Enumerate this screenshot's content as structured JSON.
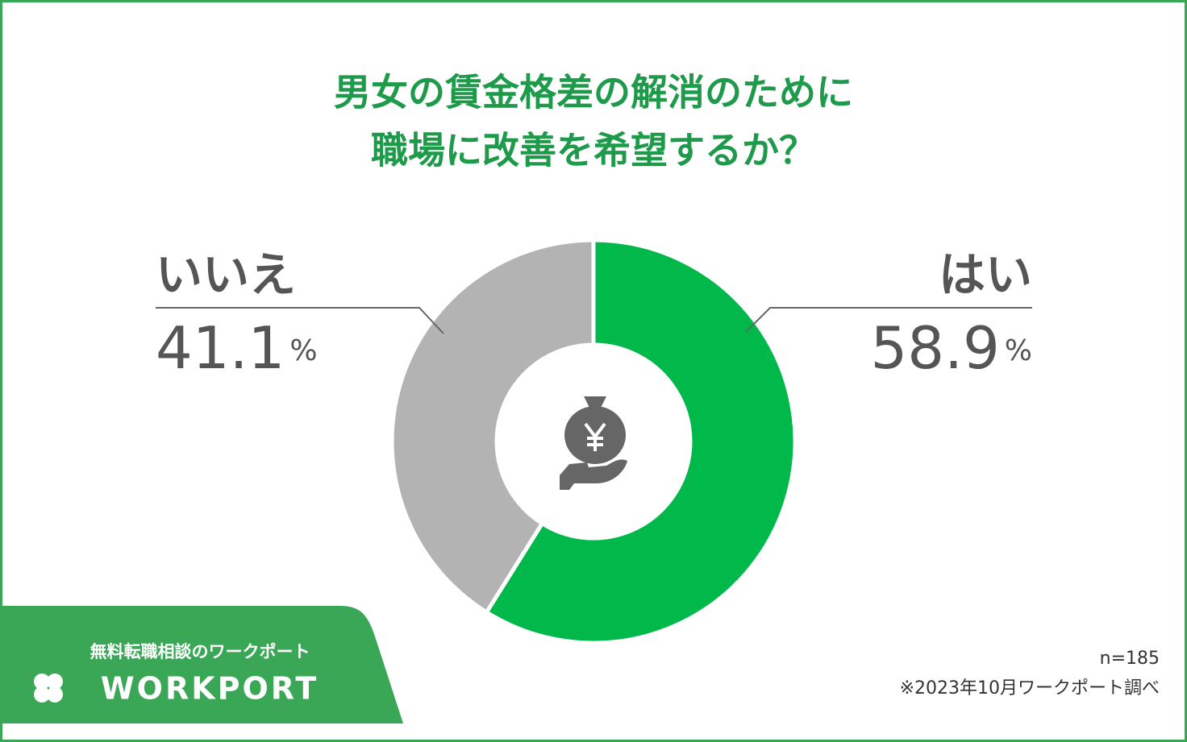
{
  "chart_data": {
    "type": "pie",
    "title": [
      "男女の賃金格差の解消のために",
      "職場に改善を希望するか？"
    ],
    "categories": [
      "はい",
      "いいえ"
    ],
    "values": [
      58.9,
      41.1
    ],
    "value_labels": [
      "58.9%",
      "41.1%"
    ],
    "colors": [
      "#00b94a",
      "#b3b3b3"
    ],
    "notes": [
      "n=185",
      "※2023年10月ワークポート調べ"
    ]
  },
  "brand": {
    "tagline": "無料転職相談のワークポート",
    "logo": "WORKPORT"
  }
}
